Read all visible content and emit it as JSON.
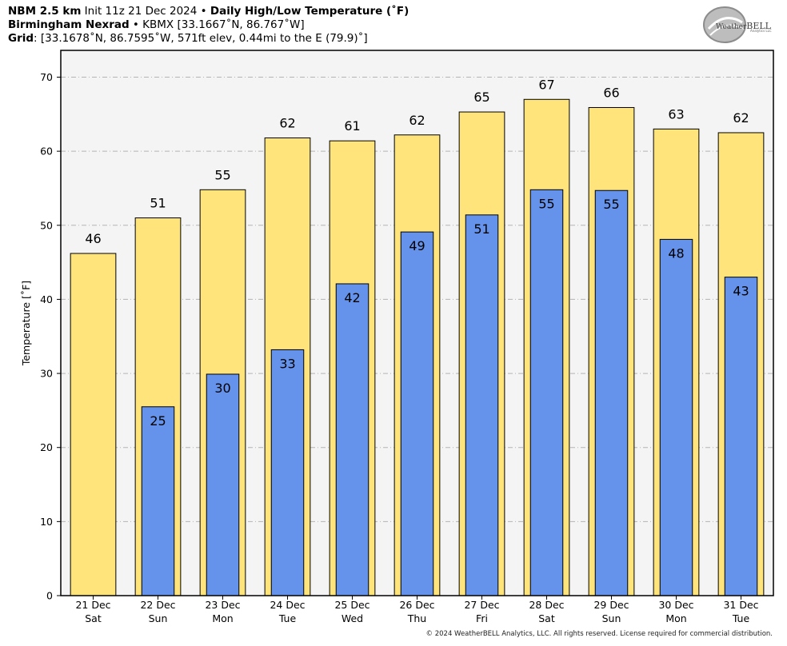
{
  "header": {
    "line1": {
      "bold1": "NBM 2.5 km",
      "text1": " Init 11z 21 Dec 2024 • ",
      "bold2": "Daily High/Low Temperature (˚F)"
    },
    "line2": {
      "bold": "Birmingham Nexrad",
      "text": " • KBMX [33.1667˚N, 86.767˚W]"
    },
    "line3": {
      "bold": "Grid",
      "text": ": [33.1678˚N, 86.7595˚W, 571ft elev, 0.44mi to the E (79.9)˚]"
    }
  },
  "logo": {
    "text1": "Weather",
    "text2": "BELL",
    "sub": "Analytics LLC"
  },
  "copyright": "© 2024 WeatherBELL Analytics, LLC. All rights reserved. License required for commercial distribution.",
  "colors": {
    "high": "#ffe47c",
    "low": "#6593ec",
    "plot_bg": "#f4f4f4"
  },
  "chart_data": {
    "type": "bar",
    "ylabel": "Temperature [˚F]",
    "ylim": [
      0,
      70
    ],
    "yticks": [
      0,
      10,
      20,
      30,
      40,
      50,
      60,
      70
    ],
    "grid": true,
    "categories": [
      [
        "21 Dec",
        "Sat"
      ],
      [
        "22 Dec",
        "Sun"
      ],
      [
        "23 Dec",
        "Mon"
      ],
      [
        "24 Dec",
        "Tue"
      ],
      [
        "25 Dec",
        "Wed"
      ],
      [
        "26 Dec",
        "Thu"
      ],
      [
        "27 Dec",
        "Fri"
      ],
      [
        "28 Dec",
        "Sat"
      ],
      [
        "29 Dec",
        "Sun"
      ],
      [
        "30 Dec",
        "Mon"
      ],
      [
        "31 Dec",
        "Tue"
      ]
    ],
    "series": [
      {
        "role": "high",
        "values": [
          46.2,
          51.0,
          54.8,
          61.8,
          61.4,
          62.2,
          65.3,
          67.0,
          65.9,
          63.0,
          62.5
        ],
        "labels": [
          "46",
          "51",
          "55",
          "62",
          "61",
          "62",
          "65",
          "67",
          "66",
          "63",
          "62"
        ]
      },
      {
        "role": "low",
        "values": [
          null,
          25.5,
          29.9,
          33.2,
          42.1,
          49.1,
          51.4,
          54.8,
          54.7,
          48.1,
          43.0
        ],
        "labels": [
          "",
          "25",
          "30",
          "33",
          "42",
          "49",
          "51",
          "55",
          "55",
          "48",
          "43"
        ]
      }
    ]
  }
}
